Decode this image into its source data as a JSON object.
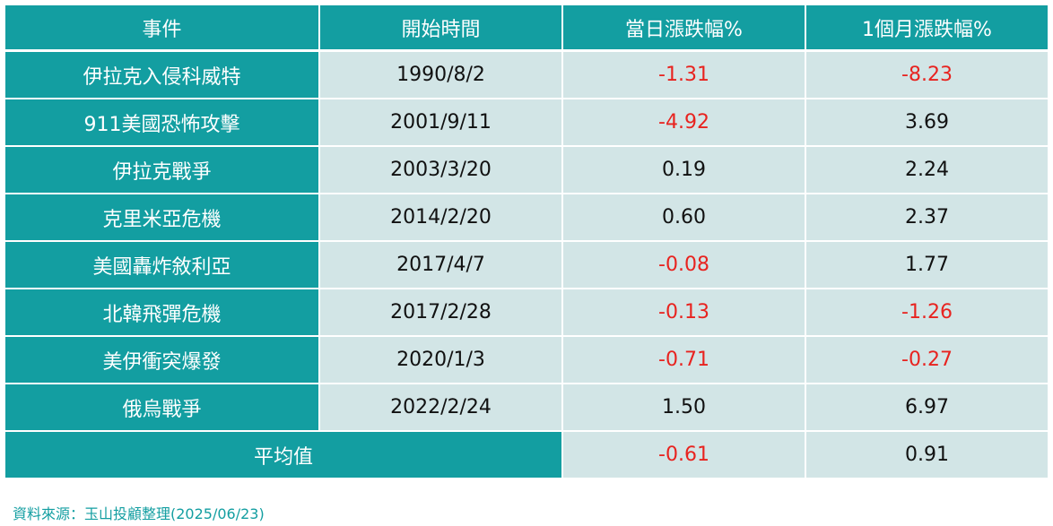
{
  "chart_data": {
    "type": "table",
    "columns": [
      "事件",
      "開始時間",
      "當日漲跌幅%",
      "1個月漲跌幅%"
    ],
    "rows": [
      {
        "event": "伊拉克入侵科威特",
        "start": "1990/8/2",
        "day": "-1.31",
        "month": "-8.23"
      },
      {
        "event": "911美國恐怖攻擊",
        "start": "2001/9/11",
        "day": "-4.92",
        "month": "3.69"
      },
      {
        "event": "伊拉克戰爭",
        "start": "2003/3/20",
        "day": "0.19",
        "month": "2.24"
      },
      {
        "event": "克里米亞危機",
        "start": "2014/2/20",
        "day": "0.60",
        "month": "2.37"
      },
      {
        "event": "美國轟炸敘利亞",
        "start": "2017/4/7",
        "day": "-0.08",
        "month": "1.77"
      },
      {
        "event": "北韓飛彈危機",
        "start": "2017/2/28",
        "day": "-0.13",
        "month": "-1.26"
      },
      {
        "event": "美伊衝突爆發",
        "start": "2020/1/3",
        "day": "-0.71",
        "month": "-0.27"
      },
      {
        "event": "俄烏戰爭",
        "start": "2022/2/24",
        "day": "1.50",
        "month": "6.97"
      }
    ],
    "average": {
      "label": "平均值",
      "day": "-0.61",
      "month": "0.91"
    }
  },
  "source": "資料來源：玉山投顧整理(2025/06/23)",
  "colors": {
    "header_bg": "#139ea1",
    "cell_bg": "#d2e5e6",
    "negative": "#e8231f",
    "text": "#111111",
    "source_text": "#139ea1"
  }
}
